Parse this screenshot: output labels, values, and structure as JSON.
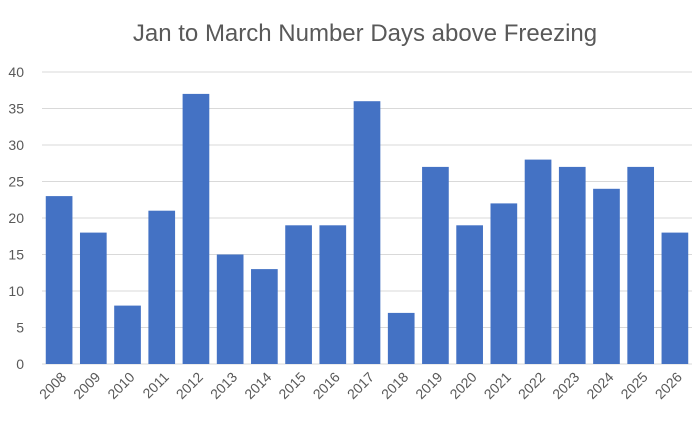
{
  "chart_data": {
    "type": "bar",
    "title": "Jan to March Number Days above Freezing",
    "xlabel": "",
    "ylabel": "",
    "categories": [
      "2008",
      "2009",
      "2010",
      "2011",
      "2012",
      "2013",
      "2014",
      "2015",
      "2016",
      "2017",
      "2018",
      "2019",
      "2020",
      "2021",
      "2022",
      "2023",
      "2024",
      "2025",
      "2026"
    ],
    "values": [
      23,
      18,
      8,
      21,
      37,
      15,
      13,
      19,
      19,
      36,
      7,
      27,
      19,
      22,
      28,
      27,
      24,
      27,
      18
    ],
    "ylim": [
      0,
      40
    ],
    "yticks": [
      0,
      5,
      10,
      15,
      20,
      25,
      30,
      35,
      40
    ],
    "grid": true,
    "legend": "none",
    "colors": {
      "bar": "#4472C4",
      "grid": "#D9D9D9",
      "text": "#595959"
    }
  }
}
